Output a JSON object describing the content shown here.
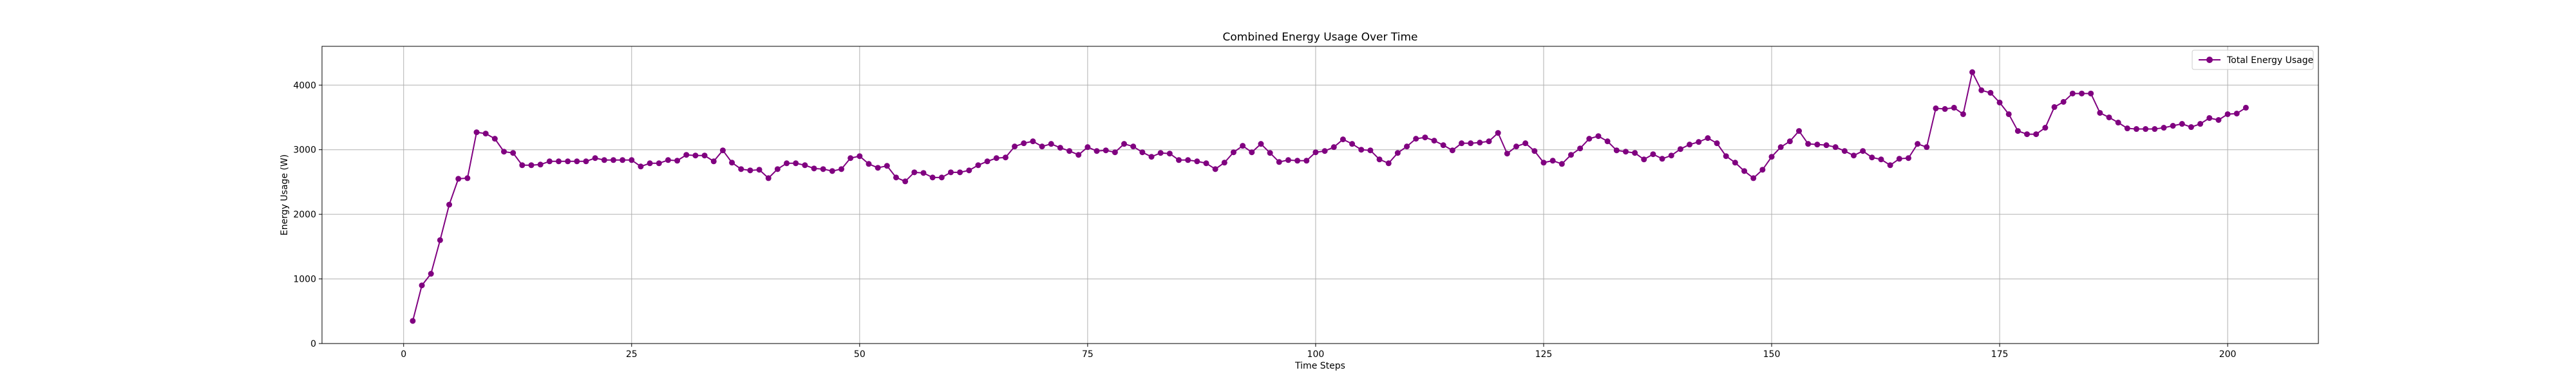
{
  "chart_data": {
    "type": "line",
    "title": "Combined Energy Usage Over Time",
    "xlabel": "Time Steps",
    "ylabel": "Energy Usage (W)",
    "xlim": [
      -8.95,
      209.95
    ],
    "ylim": [
      0,
      4600
    ],
    "x_ticks": [
      0,
      25,
      50,
      75,
      100,
      125,
      150,
      175,
      200
    ],
    "y_ticks": [
      0,
      1000,
      2000,
      3000,
      4000
    ],
    "grid": true,
    "legend_position": "top-right",
    "series": [
      {
        "name": "Total Energy Usage",
        "color": "#800080",
        "marker": "circle",
        "x_start": 1,
        "x_step": 1,
        "values": [
          350,
          900,
          1080,
          1600,
          2150,
          2550,
          2560,
          3270,
          3250,
          3170,
          2970,
          2950,
          2760,
          2760,
          2770,
          2820,
          2820,
          2820,
          2820,
          2820,
          2870,
          2840,
          2840,
          2840,
          2840,
          2740,
          2790,
          2790,
          2840,
          2830,
          2920,
          2910,
          2910,
          2820,
          2990,
          2800,
          2700,
          2680,
          2690,
          2560,
          2700,
          2790,
          2790,
          2760,
          2710,
          2700,
          2670,
          2700,
          2870,
          2900,
          2780,
          2720,
          2750,
          2570,
          2510,
          2650,
          2640,
          2570,
          2570,
          2650,
          2650,
          2680,
          2760,
          2820,
          2870,
          2880,
          3050,
          3100,
          3130,
          3050,
          3090,
          3030,
          2980,
          2920,
          3040,
          2980,
          2990,
          2960,
          3090,
          3050,
          2960,
          2890,
          2950,
          2940,
          2840,
          2840,
          2820,
          2790,
          2700,
          2800,
          2960,
          3060,
          2960,
          3090,
          2950,
          2810,
          2840,
          2830,
          2830,
          2960,
          2980,
          3040,
          3160,
          3090,
          3000,
          2990,
          2850,
          2790,
          2950,
          3050,
          3170,
          3190,
          3140,
          3070,
          2990,
          3100,
          3100,
          3110,
          3130,
          3260,
          2940,
          3050,
          3100,
          2980,
          2800,
          2830,
          2780,
          2920,
          3020,
          3170,
          3210,
          3130,
          2990,
          2970,
          2950,
          2850,
          2930,
          2860,
          2910,
          3010,
          3080,
          3120,
          3180,
          3100,
          2900,
          2800,
          2670,
          2560,
          2690,
          2890,
          3040,
          3130,
          3290,
          3090,
          3080,
          3070,
          3040,
          2980,
          2910,
          2980,
          2880,
          2850,
          2760,
          2860,
          2870,
          3090,
          3040,
          3640,
          3630,
          3650,
          3550,
          4200,
          3920,
          3880,
          3730,
          3550,
          3290,
          3240,
          3240,
          3340,
          3660,
          3740,
          3870,
          3870,
          3870,
          3570,
          3500,
          3420,
          3330,
          3320,
          3320,
          3320,
          3340,
          3370,
          3400,
          3350,
          3400,
          3490,
          3460,
          3550,
          3560,
          3650
        ]
      }
    ]
  }
}
